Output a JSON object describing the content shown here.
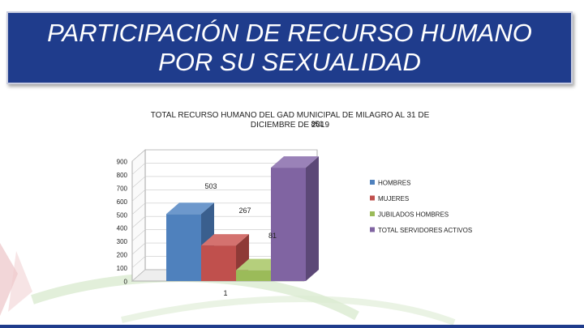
{
  "slide": {
    "title_line1": "PARTICIPACIÓN DE RECURSO HUMANO",
    "title_line2": "POR SU SEXUALIDAD",
    "accent_color": "#1f3c8c"
  },
  "chart_data": {
    "type": "bar",
    "title_line1": "TOTAL RECURSO HUMANO DEL GAD MUNICIPAL DE MILAGRO AL 31 DE",
    "title_line2": "DICIEMBRE DE 2019",
    "ylim": [
      0,
      900
    ],
    "yticks": [
      0,
      100,
      200,
      300,
      400,
      500,
      600,
      700,
      800,
      900
    ],
    "legend_position": "right",
    "series": [
      {
        "name": "HOMBRES",
        "value": 503,
        "label": "503",
        "color": "#4f81bd",
        "side": "#3a5f8e",
        "top": "#6d98cc"
      },
      {
        "name": "MUJERES",
        "value": 267,
        "label": "267",
        "color": "#c0504d",
        "side": "#8f3a37",
        "top": "#d4726f"
      },
      {
        "name": "JUBILADOS HOMBRES",
        "value": 81,
        "label": "81",
        "color": "#9bbb59",
        "side": "#718a40",
        "top": "#b5cf7c"
      },
      {
        "name": "TOTAL SERVIDORES ACTIVOS",
        "value": 851,
        "label": "851",
        "color": "#8064a2",
        "side": "#5c4877",
        "top": "#9a82b8"
      }
    ],
    "stray_label": "1"
  }
}
